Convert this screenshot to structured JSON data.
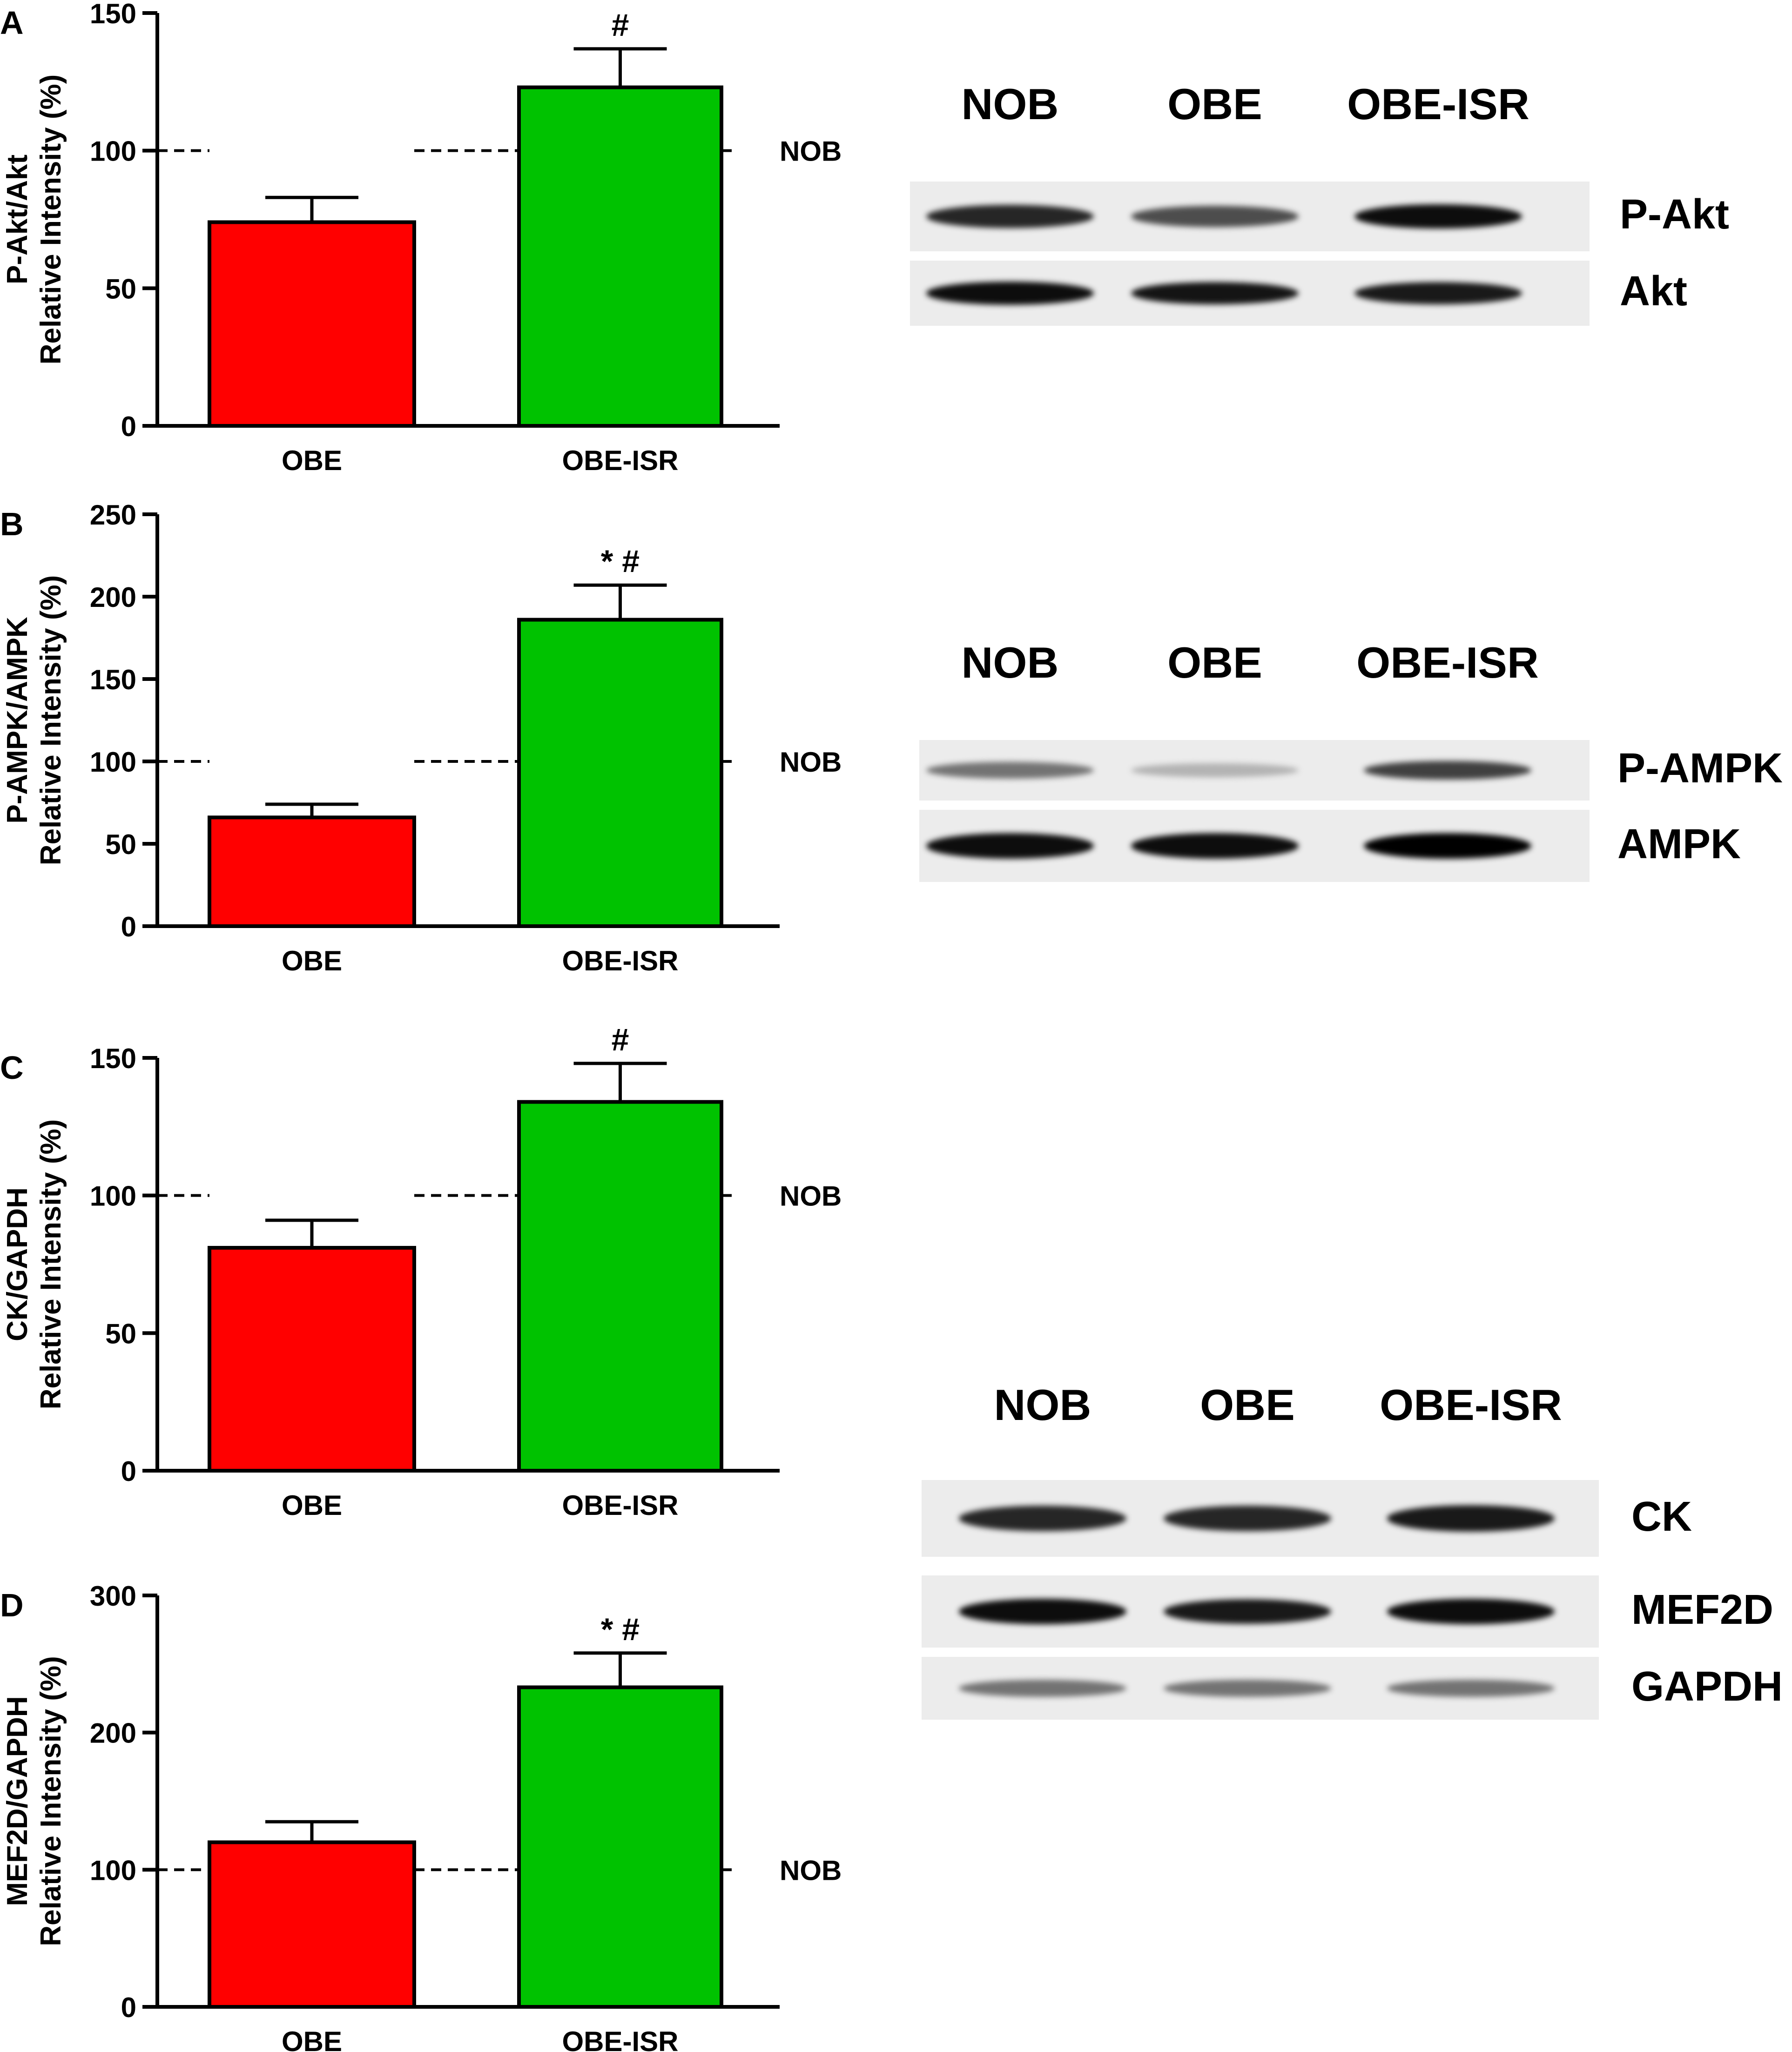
{
  "colors": {
    "obe": "#ff0000",
    "obe_isr": "#00c200",
    "axis": "#000000"
  },
  "reference_label": "NOB",
  "chart_data": [
    {
      "type": "bar",
      "panel": "A",
      "ylabel_line1": "P-Akt/Akt",
      "ylabel_line2": "Relative Intensity (%)",
      "ylim": [
        0,
        150
      ],
      "yticks": [
        0,
        50,
        100,
        150
      ],
      "categories": [
        "OBE",
        "OBE-ISR"
      ],
      "values": [
        74,
        123
      ],
      "errors": [
        9,
        14
      ],
      "annotations": [
        "",
        "#"
      ],
      "reference_line": 100
    },
    {
      "type": "bar",
      "panel": "B",
      "ylabel_line1": "P-AMPK/AMPK",
      "ylabel_line2": "Relative Intensity (%)",
      "ylim": [
        0,
        250
      ],
      "yticks": [
        0,
        50,
        100,
        150,
        200,
        250
      ],
      "categories": [
        "OBE",
        "OBE-ISR"
      ],
      "values": [
        66,
        186
      ],
      "errors": [
        8,
        21
      ],
      "annotations": [
        "",
        "* #"
      ],
      "reference_line": 100
    },
    {
      "type": "bar",
      "panel": "C",
      "ylabel_line1": "CK/GAPDH",
      "ylabel_line2": "Relative Intensity (%)",
      "ylim": [
        0,
        150
      ],
      "yticks": [
        0,
        50,
        100,
        150
      ],
      "categories": [
        "OBE",
        "OBE-ISR"
      ],
      "values": [
        81,
        134
      ],
      "errors": [
        10,
        14
      ],
      "annotations": [
        "",
        "#"
      ],
      "reference_line": 100
    },
    {
      "type": "bar",
      "panel": "D",
      "ylabel_line1": "MEF2D/GAPDH",
      "ylabel_line2": "Relative Intensity (%)",
      "ylim": [
        0,
        300
      ],
      "yticks": [
        0,
        100,
        200,
        300
      ],
      "categories": [
        "OBE",
        "OBE-ISR"
      ],
      "values": [
        120,
        233
      ],
      "errors": [
        15,
        25
      ],
      "annotations": [
        "",
        "* #"
      ],
      "reference_line": 100
    }
  ],
  "blots": [
    {
      "lanes": [
        "NOB",
        "OBE",
        "OBE-ISR"
      ],
      "rows": [
        {
          "label": "P-Akt",
          "intensity": [
            0.85,
            0.7,
            0.95
          ]
        },
        {
          "label": "Akt",
          "intensity": [
            0.95,
            0.92,
            0.9
          ]
        }
      ]
    },
    {
      "lanes": [
        "NOB",
        "OBE",
        "OBE-ISR"
      ],
      "rows": [
        {
          "label": "P-AMPK",
          "intensity": [
            0.55,
            0.3,
            0.75
          ]
        },
        {
          "label": "AMPK",
          "intensity": [
            0.95,
            0.95,
            1.0
          ]
        }
      ]
    },
    {
      "lanes": [
        "NOB",
        "OBE",
        "OBE-ISR"
      ],
      "rows": [
        {
          "label": "CK",
          "intensity": [
            0.85,
            0.85,
            0.9
          ]
        },
        {
          "label": "MEF2D",
          "intensity": [
            0.95,
            0.9,
            0.95
          ]
        },
        {
          "label": "GAPDH",
          "intensity": [
            0.55,
            0.55,
            0.55
          ]
        }
      ]
    }
  ]
}
